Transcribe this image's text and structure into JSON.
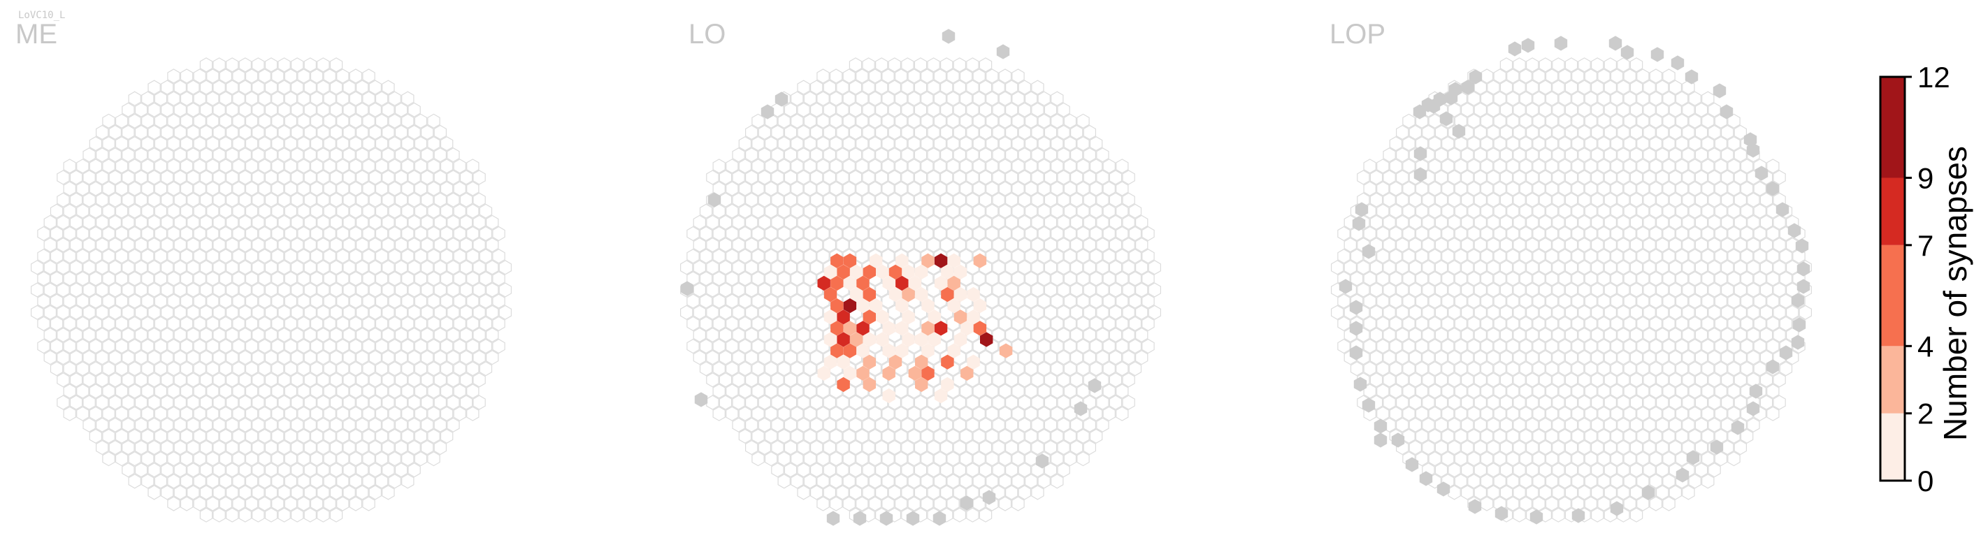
{
  "figure": {
    "cell_type": "LoVC10_L"
  },
  "chart_data": {
    "type": "heatmap",
    "layout": "hexagonal-grid",
    "panels": [
      {
        "label": "ME",
        "cells": []
      },
      {
        "label": "LO",
        "cells": [
          {
            "x": 0,
            "y": 7,
            "value": 5
          },
          {
            "x": 1,
            "y": 7,
            "value": 6
          },
          {
            "x": 3,
            "y": 7,
            "value": 1
          },
          {
            "x": 5,
            "y": 7,
            "value": 1
          },
          {
            "x": 7,
            "y": 7,
            "value": 4
          },
          {
            "x": 8,
            "y": 7,
            "value": 11
          },
          {
            "x": 9,
            "y": 7,
            "value": 1
          },
          {
            "x": 11,
            "y": 7,
            "value": 3
          },
          {
            "x": 0,
            "y": 6,
            "value": 1
          },
          {
            "x": 1,
            "y": 6,
            "value": 5
          },
          {
            "x": 2,
            "y": 6,
            "value": 1
          },
          {
            "x": 3,
            "y": 6,
            "value": 6
          },
          {
            "x": 4,
            "y": 6,
            "value": 1
          },
          {
            "x": 5,
            "y": 6,
            "value": 5
          },
          {
            "x": 6,
            "y": 6,
            "value": 1
          },
          {
            "x": 7,
            "y": 6,
            "value": 2
          },
          {
            "x": 9,
            "y": 6,
            "value": 1
          },
          {
            "x": 10,
            "y": 6,
            "value": 2
          },
          {
            "x": -1,
            "y": 5,
            "value": 8
          },
          {
            "x": 0,
            "y": 5,
            "value": 5
          },
          {
            "x": 1,
            "y": 5,
            "value": 1
          },
          {
            "x": 2,
            "y": 5,
            "value": 5
          },
          {
            "x": 4,
            "y": 5,
            "value": 2
          },
          {
            "x": 5,
            "y": 5,
            "value": 8
          },
          {
            "x": 6,
            "y": 5,
            "value": 2
          },
          {
            "x": 8,
            "y": 5,
            "value": 1
          },
          {
            "x": 9,
            "y": 5,
            "value": 3
          },
          {
            "x": 0,
            "y": 4,
            "value": 6
          },
          {
            "x": 2,
            "y": 4,
            "value": 2
          },
          {
            "x": 3,
            "y": 4,
            "value": 6
          },
          {
            "x": 5,
            "y": 4,
            "value": 2
          },
          {
            "x": 6,
            "y": 4,
            "value": 3
          },
          {
            "x": 7,
            "y": 4,
            "value": 1
          },
          {
            "x": 9,
            "y": 4,
            "value": 6
          },
          {
            "x": 10,
            "y": 4,
            "value": 1
          },
          {
            "x": 11,
            "y": 4,
            "value": 2
          },
          {
            "x": 0,
            "y": 3,
            "value": 7
          },
          {
            "x": 1,
            "y": 3,
            "value": 11
          },
          {
            "x": 2,
            "y": 3,
            "value": 1
          },
          {
            "x": 3,
            "y": 3,
            "value": 1
          },
          {
            "x": 5,
            "y": 3,
            "value": 1
          },
          {
            "x": 7,
            "y": 3,
            "value": 1
          },
          {
            "x": 9,
            "y": 3,
            "value": 2
          },
          {
            "x": 11,
            "y": 3,
            "value": 1
          },
          {
            "x": 0,
            "y": 2,
            "value": 2
          },
          {
            "x": 1,
            "y": 2,
            "value": 9
          },
          {
            "x": 3,
            "y": 2,
            "value": 5
          },
          {
            "x": 4,
            "y": 2,
            "value": 1
          },
          {
            "x": 6,
            "y": 2,
            "value": 1
          },
          {
            "x": 8,
            "y": 2,
            "value": 2
          },
          {
            "x": 10,
            "y": 2,
            "value": 3
          },
          {
            "x": 11,
            "y": 2,
            "value": 1
          },
          {
            "x": 0,
            "y": 1,
            "value": 7
          },
          {
            "x": 1,
            "y": 1,
            "value": 3
          },
          {
            "x": 2,
            "y": 1,
            "value": 9
          },
          {
            "x": 4,
            "y": 1,
            "value": 2
          },
          {
            "x": 5,
            "y": 1,
            "value": 1
          },
          {
            "x": 7,
            "y": 1,
            "value": 3
          },
          {
            "x": 8,
            "y": 1,
            "value": 8
          },
          {
            "x": 10,
            "y": 1,
            "value": 1
          },
          {
            "x": 11,
            "y": 1,
            "value": 6
          },
          {
            "x": 0,
            "y": 0,
            "value": 1
          },
          {
            "x": 1,
            "y": 0,
            "value": 8
          },
          {
            "x": 2,
            "y": 0,
            "value": 3
          },
          {
            "x": 3,
            "y": 0,
            "value": 1
          },
          {
            "x": 4,
            "y": 0,
            "value": 1
          },
          {
            "x": 6,
            "y": 0,
            "value": 1
          },
          {
            "x": 7,
            "y": 0,
            "value": 2
          },
          {
            "x": 8,
            "y": 0,
            "value": 1
          },
          {
            "x": 10,
            "y": 0,
            "value": 1
          },
          {
            "x": 12,
            "y": 0,
            "value": 10
          },
          {
            "x": 0,
            "y": -1,
            "value": 6
          },
          {
            "x": 1,
            "y": -1,
            "value": 5
          },
          {
            "x": 2,
            "y": -1,
            "value": 1
          },
          {
            "x": 4,
            "y": -1,
            "value": 1
          },
          {
            "x": 5,
            "y": -1,
            "value": 1
          },
          {
            "x": 7,
            "y": -1,
            "value": 2
          },
          {
            "x": 9,
            "y": -1,
            "value": 1
          },
          {
            "x": 13,
            "y": -1,
            "value": 3
          },
          {
            "x": 0,
            "y": -2,
            "value": 1
          },
          {
            "x": 1,
            "y": -2,
            "value": 2
          },
          {
            "x": 3,
            "y": -2,
            "value": 3
          },
          {
            "x": 5,
            "y": -2,
            "value": 3
          },
          {
            "x": 7,
            "y": -2,
            "value": 3
          },
          {
            "x": 9,
            "y": -2,
            "value": 5
          },
          {
            "x": 11,
            "y": -2,
            "value": 1
          },
          {
            "x": -1,
            "y": -3,
            "value": 1
          },
          {
            "x": 1,
            "y": -3,
            "value": 1
          },
          {
            "x": 2,
            "y": -3,
            "value": 3
          },
          {
            "x": 4,
            "y": -3,
            "value": 3
          },
          {
            "x": 6,
            "y": -3,
            "value": 3
          },
          {
            "x": 7,
            "y": -3,
            "value": 5
          },
          {
            "x": 10,
            "y": -3,
            "value": 3
          },
          {
            "x": 1,
            "y": -4,
            "value": 5
          },
          {
            "x": 3,
            "y": -4,
            "value": 3
          },
          {
            "x": 7,
            "y": -4,
            "value": 3
          },
          {
            "x": 9,
            "y": -4,
            "value": 2
          },
          {
            "x": 4,
            "y": -5,
            "value": 2
          },
          {
            "x": 8,
            "y": -5,
            "value": 2
          }
        ]
      },
      {
        "label": "LOP",
        "cells": []
      }
    ],
    "colorbar": {
      "label": "Number of synapses",
      "ticks": [
        "0",
        "2",
        "4",
        "7",
        "9",
        "12"
      ],
      "tick_values": [
        0,
        2,
        4,
        7,
        9,
        12
      ],
      "colors": [
        "#fdeee6",
        "#fbb69a",
        "#f6704f",
        "#d52a22",
        "#a11519"
      ]
    },
    "colors": {
      "empty_stroke": "#dcdcdc",
      "missing_fill": "#cccccc"
    }
  }
}
